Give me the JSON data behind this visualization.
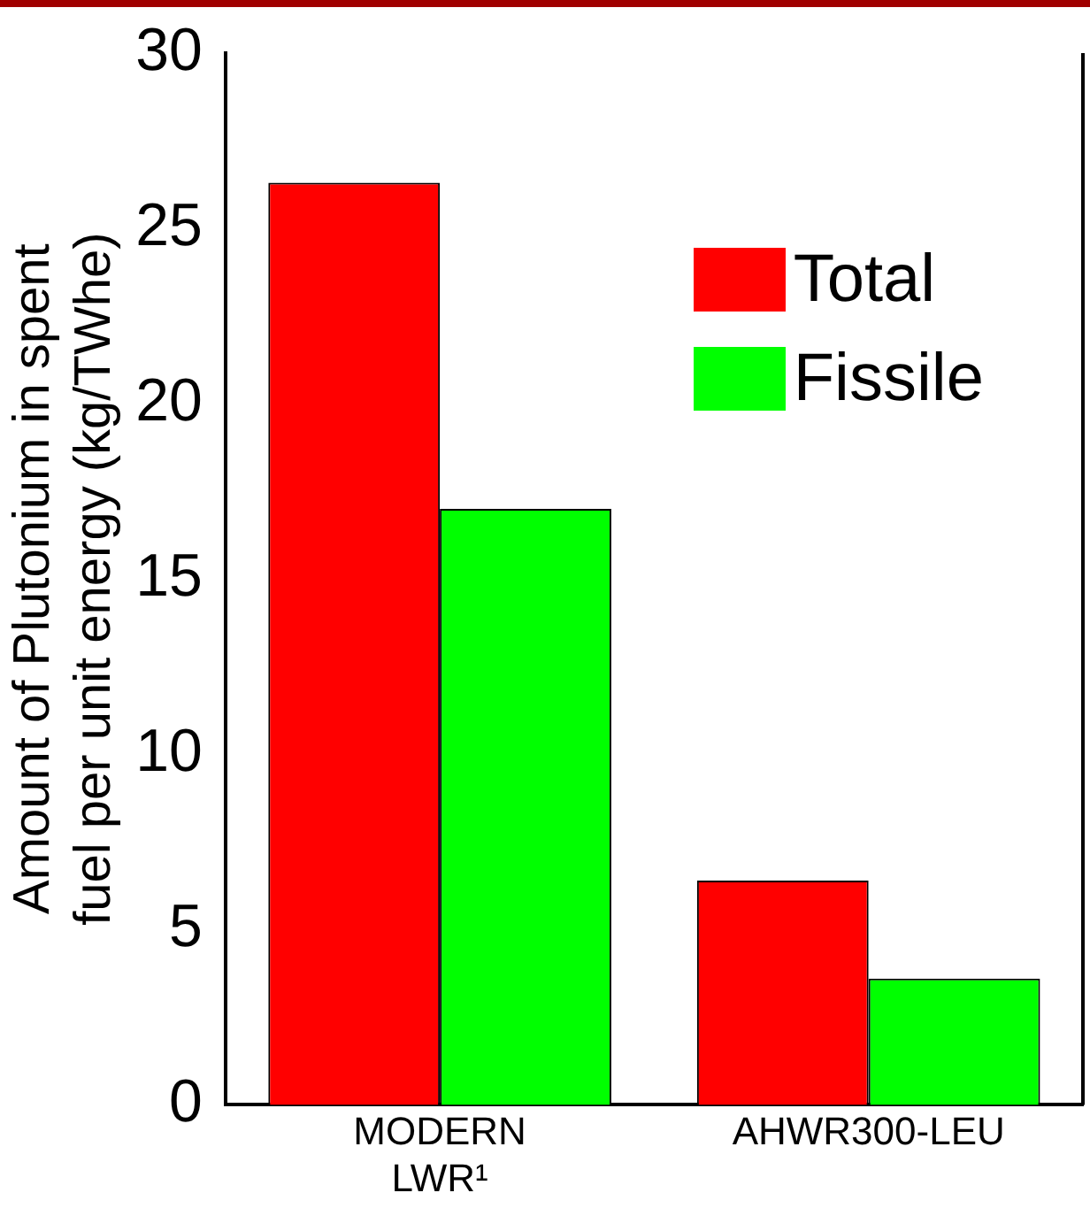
{
  "chart_data": {
    "type": "bar",
    "ylabel": "Amount of Plutonium in spent fuel per unit energy (kg/TWhe)",
    "categories": [
      "MODERN LWR¹",
      "AHWR300-LEU"
    ],
    "series": [
      {
        "name": "Total",
        "color": "#ff0000",
        "values": [
          26.3,
          6.4
        ]
      },
      {
        "name": "Fissile",
        "color": "#00ff00",
        "values": [
          17.0,
          3.6
        ]
      }
    ],
    "ylim": [
      0,
      30
    ],
    "yticks": [
      0,
      5,
      10,
      15,
      20,
      25,
      30
    ],
    "grid": false,
    "legend": "top right"
  }
}
